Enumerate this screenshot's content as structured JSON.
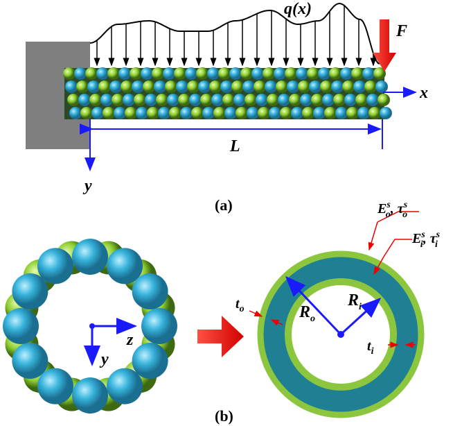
{
  "panel_a": {
    "load_label": "q(x)",
    "force_label": "F",
    "x_axis": "x",
    "length_label": "L",
    "y_axis": "y",
    "caption": "(a)"
  },
  "panel_b": {
    "outer_surface": {
      "modulus": {
        "base": "E",
        "sub": "o",
        "sup": "s"
      },
      "separator": ",",
      "stress": {
        "base": "τ",
        "sub": "o",
        "sup": "s"
      }
    },
    "inner_surface": {
      "modulus": {
        "base": "E",
        "sub": "i",
        "sup": "s"
      },
      "separator": ",",
      "stress": {
        "base": "τ",
        "sub": "i",
        "sup": "s"
      }
    },
    "outer_thickness": {
      "base": "t",
      "sub": "o"
    },
    "outer_radius": {
      "base": "R",
      "sub": "o"
    },
    "inner_radius": {
      "base": "R",
      "sub": "i"
    },
    "inner_thickness": {
      "base": "t",
      "sub": "i"
    },
    "z_axis": "z",
    "y_axis": "y",
    "caption": "(b)"
  }
}
